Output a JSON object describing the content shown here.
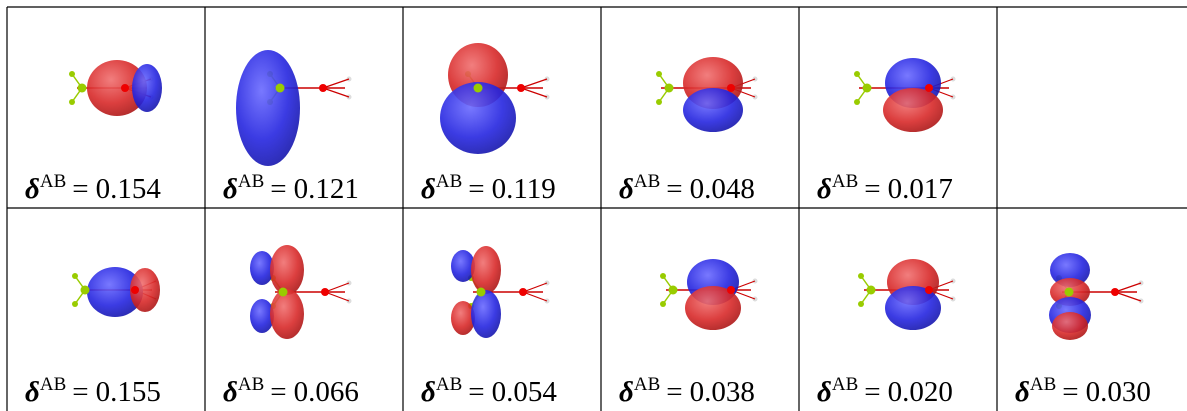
{
  "table": {
    "rows": [
      [
        {
          "symbol": "δ",
          "superscript": "AB",
          "relation": "=",
          "value": "0.154"
        },
        {
          "symbol": "δ",
          "superscript": "AB",
          "relation": "=",
          "value": "0.121"
        },
        {
          "symbol": "δ",
          "superscript": "AB",
          "relation": "=",
          "value": "0.119"
        },
        {
          "symbol": "δ",
          "superscript": "AB",
          "relation": "=",
          "value": "0.048"
        },
        {
          "symbol": "δ",
          "superscript": "AB",
          "relation": "=",
          "value": "0.017"
        },
        null
      ],
      [
        {
          "symbol": "δ",
          "superscript": "AB",
          "relation": "=",
          "value": "0.155"
        },
        {
          "symbol": "δ",
          "superscript": "AB",
          "relation": "=",
          "value": "0.066"
        },
        {
          "symbol": "δ",
          "superscript": "AB",
          "relation": "=",
          "value": "0.054"
        },
        {
          "symbol": "δ",
          "superscript": "AB",
          "relation": "=",
          "value": "0.038"
        },
        {
          "symbol": "δ",
          "superscript": "AB",
          "relation": "=",
          "value": "0.020"
        },
        {
          "symbol": "δ",
          "superscript": "AB",
          "relation": "=",
          "value": "0.030"
        }
      ]
    ]
  }
}
